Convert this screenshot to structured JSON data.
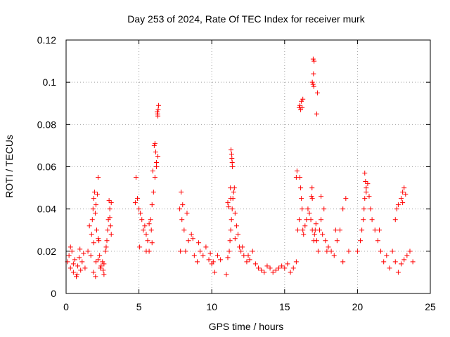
{
  "chart_data": {
    "type": "scatter",
    "title": "Day 253 of 2024, Rate Of TEC Index for receiver murk",
    "xlabel": "GPS time / hours",
    "ylabel": "ROTI / TECUs",
    "xlim": [
      0,
      25
    ],
    "ylim": [
      0,
      0.12
    ],
    "x_ticks": [
      "0",
      "5",
      "10",
      "15",
      "20",
      "25"
    ],
    "y_ticks": [
      "0",
      "0.02",
      "0.04",
      "0.06",
      "0.08",
      "0.1",
      "0.12"
    ],
    "grid": true,
    "marker": "plus",
    "color": "#ff0000",
    "series": [
      {
        "x": [
          0.1,
          0.2,
          0.3,
          0.4,
          0.5,
          0.6,
          0.7,
          0.8,
          0.9,
          1.0,
          1.1,
          1.2,
          0.3,
          0.5,
          0.75,
          0.95,
          1.3,
          1.5,
          1.7,
          1.8,
          1.85,
          1.9,
          1.95,
          2.0,
          2.05,
          2.1,
          2.15,
          2.2,
          2.25,
          2.3,
          2.35,
          2.5,
          2.6,
          2.7,
          2.8,
          2.85,
          2.9,
          2.95,
          3.0,
          3.05,
          3.1,
          1.88,
          2.02,
          2.2,
          2.21,
          2.6,
          2.75,
          3.0,
          3.1,
          1.6,
          1.75,
          1.9,
          2.05,
          2.4,
          2.55,
          4.8,
          4.9,
          5.0,
          5.1,
          5.2,
          5.3,
          5.4,
          5.5,
          5.6,
          5.7,
          5.8,
          5.9,
          6.0,
          6.1,
          6.2,
          6.3,
          4.75,
          5.05,
          5.5,
          5.85,
          5.95,
          6.05,
          6.1,
          6.15,
          6.2,
          6.25,
          6.3,
          6.35,
          6.32,
          6.28,
          5.7,
          5.9,
          7.8,
          7.9,
          8.0,
          8.1,
          8.2,
          8.4,
          8.6,
          8.8,
          9.0,
          9.2,
          9.4,
          9.6,
          9.8,
          10.0,
          10.2,
          10.4,
          10.6,
          7.85,
          7.95,
          8.3,
          8.7,
          9.1,
          9.9,
          10.1,
          11.0,
          11.1,
          11.2,
          11.25,
          11.3,
          11.35,
          11.4,
          11.45,
          11.5,
          11.55,
          11.6,
          11.7,
          11.8,
          11.9,
          12.0,
          12.2,
          12.4,
          12.6,
          12.8,
          13.0,
          13.2,
          13.4,
          13.6,
          13.8,
          14.0,
          14.2,
          14.4,
          14.6,
          14.8,
          11.32,
          11.36,
          11.38,
          11.4,
          11.42,
          11.3,
          11.28,
          11.15,
          11.1,
          11.6,
          12.1,
          12.5,
          15.0,
          15.2,
          15.4,
          15.6,
          15.8,
          15.9,
          16.0,
          16.05,
          16.1,
          16.15,
          16.2,
          16.25,
          16.3,
          16.4,
          16.5,
          16.6,
          16.7,
          16.8,
          16.9,
          17.0,
          17.05,
          17.1,
          17.15,
          17.2,
          17.3,
          17.4,
          17.5,
          17.6,
          17.7,
          17.8,
          17.9,
          18.0,
          18.2,
          18.4,
          18.6,
          18.8,
          19.0,
          19.2,
          19.4,
          16.0,
          16.05,
          16.1,
          16.15,
          16.2,
          16.25,
          16.9,
          16.95,
          17.0,
          16.98,
          17.02,
          16.96,
          17.25,
          17.2,
          16.9,
          15.8,
          15.85,
          16.85,
          16.88,
          17.5,
          18.5,
          19.0,
          20.0,
          20.2,
          20.3,
          20.4,
          20.5,
          20.6,
          20.7,
          20.8,
          20.9,
          21.0,
          21.2,
          21.4,
          21.6,
          21.8,
          22.0,
          22.2,
          22.4,
          22.6,
          22.8,
          23.0,
          23.2,
          23.4,
          23.6,
          23.8,
          20.5,
          20.55,
          20.6,
          21.5,
          22.6,
          22.7,
          22.8,
          23.0,
          23.1,
          23.2,
          23.3,
          23.1,
          20.45
        ],
        "y": [
          0.015,
          0.018,
          0.012,
          0.02,
          0.014,
          0.016,
          0.008,
          0.013,
          0.017,
          0.011,
          0.015,
          0.019,
          0.022,
          0.01,
          0.009,
          0.021,
          0.012,
          0.02,
          0.018,
          0.035,
          0.04,
          0.045,
          0.048,
          0.038,
          0.042,
          0.03,
          0.047,
          0.055,
          0.025,
          0.018,
          0.012,
          0.015,
          0.014,
          0.02,
          0.025,
          0.03,
          0.035,
          0.044,
          0.04,
          0.032,
          0.028,
          0.01,
          0.008,
          0.016,
          0.026,
          0.009,
          0.022,
          0.036,
          0.043,
          0.032,
          0.028,
          0.024,
          0.015,
          0.013,
          0.011,
          0.055,
          0.045,
          0.04,
          0.038,
          0.035,
          0.03,
          0.032,
          0.028,
          0.025,
          0.033,
          0.035,
          0.042,
          0.048,
          0.055,
          0.062,
          0.065,
          0.043,
          0.022,
          0.02,
          0.03,
          0.058,
          0.07,
          0.071,
          0.067,
          0.06,
          0.086,
          0.084,
          0.089,
          0.087,
          0.085,
          0.02,
          0.024,
          0.04,
          0.048,
          0.042,
          0.03,
          0.02,
          0.025,
          0.028,
          0.018,
          0.015,
          0.02,
          0.018,
          0.022,
          0.016,
          0.014,
          0.01,
          0.018,
          0.016,
          0.02,
          0.035,
          0.038,
          0.026,
          0.024,
          0.019,
          0.015,
          0.009,
          0.017,
          0.02,
          0.025,
          0.03,
          0.035,
          0.04,
          0.045,
          0.048,
          0.05,
          0.038,
          0.032,
          0.028,
          0.022,
          0.02,
          0.018,
          0.015,
          0.016,
          0.02,
          0.014,
          0.012,
          0.011,
          0.01,
          0.013,
          0.012,
          0.01,
          0.011,
          0.012,
          0.013,
          0.068,
          0.066,
          0.064,
          0.062,
          0.06,
          0.045,
          0.05,
          0.041,
          0.043,
          0.026,
          0.022,
          0.018,
          0.012,
          0.014,
          0.01,
          0.012,
          0.015,
          0.03,
          0.035,
          0.055,
          0.05,
          0.045,
          0.04,
          0.03,
          0.028,
          0.032,
          0.035,
          0.04,
          0.038,
          0.035,
          0.03,
          0.025,
          0.028,
          0.03,
          0.033,
          0.025,
          0.02,
          0.03,
          0.035,
          0.028,
          0.04,
          0.025,
          0.02,
          0.022,
          0.02,
          0.018,
          0.025,
          0.03,
          0.04,
          0.045,
          0.02,
          0.088,
          0.089,
          0.087,
          0.091,
          0.088,
          0.092,
          0.1,
          0.099,
          0.098,
          0.104,
          0.11,
          0.111,
          0.095,
          0.085,
          0.045,
          0.055,
          0.058,
          0.046,
          0.05,
          0.046,
          0.03,
          0.015,
          0.02,
          0.025,
          0.03,
          0.035,
          0.057,
          0.05,
          0.052,
          0.046,
          0.04,
          0.035,
          0.03,
          0.025,
          0.02,
          0.015,
          0.018,
          0.012,
          0.02,
          0.015,
          0.01,
          0.014,
          0.016,
          0.018,
          0.02,
          0.015,
          0.045,
          0.053,
          0.048,
          0.03,
          0.035,
          0.04,
          0.042,
          0.045,
          0.048,
          0.05,
          0.047,
          0.043,
          0.04
        ]
      }
    ]
  }
}
